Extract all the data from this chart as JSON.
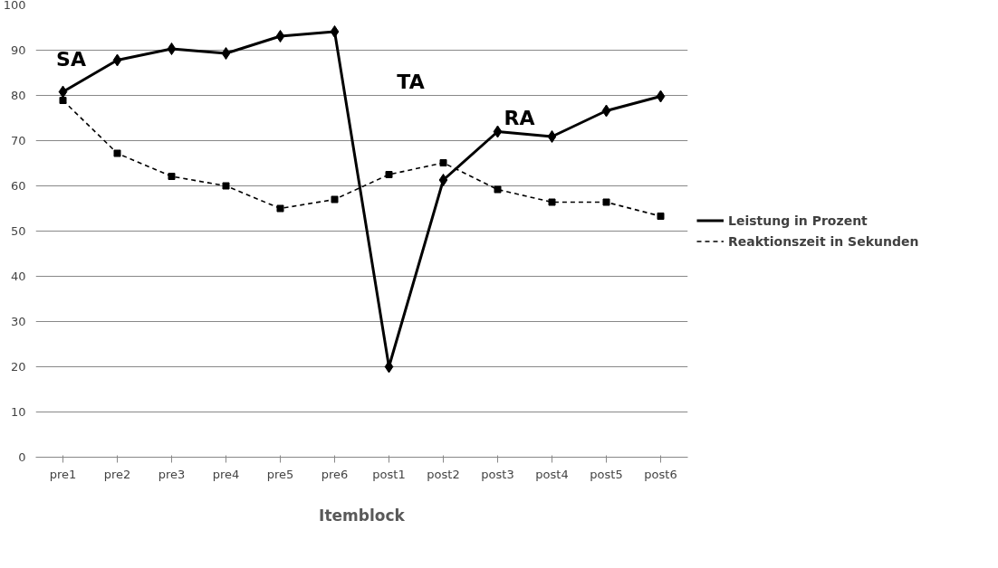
{
  "chart_data": {
    "type": "line",
    "xlabel": "Itemblock",
    "categories": [
      "pre1",
      "pre2",
      "pre3",
      "pre4",
      "pre5",
      "pre6",
      "post1",
      "post2",
      "post3",
      "post4",
      "post5",
      "post6"
    ],
    "series": [
      {
        "name": "Leistung in Prozent",
        "color": "#000000",
        "marker": "diamond",
        "line_style": "solid",
        "values": [
          80.8,
          87.8,
          90.3,
          89.3,
          93.1,
          94.1,
          20,
          61.3,
          72,
          70.9,
          76.6,
          79.8
        ]
      },
      {
        "name": "Reaktionszeit in Sekunden",
        "color": "#000000",
        "marker": "square",
        "line_style": "dashed",
        "values": [
          78.9,
          67.2,
          62.1,
          60,
          55,
          57,
          62.5,
          65.1,
          59.2,
          56.4,
          56.4,
          53.3
        ]
      }
    ],
    "annotations": [
      "SA",
      "TA",
      "RA"
    ],
    "ylim": [
      0,
      100
    ],
    "yticks": [
      0,
      10,
      20,
      30,
      40,
      50,
      60,
      70,
      80,
      90,
      100
    ],
    "grid": "y",
    "legend": "right"
  }
}
